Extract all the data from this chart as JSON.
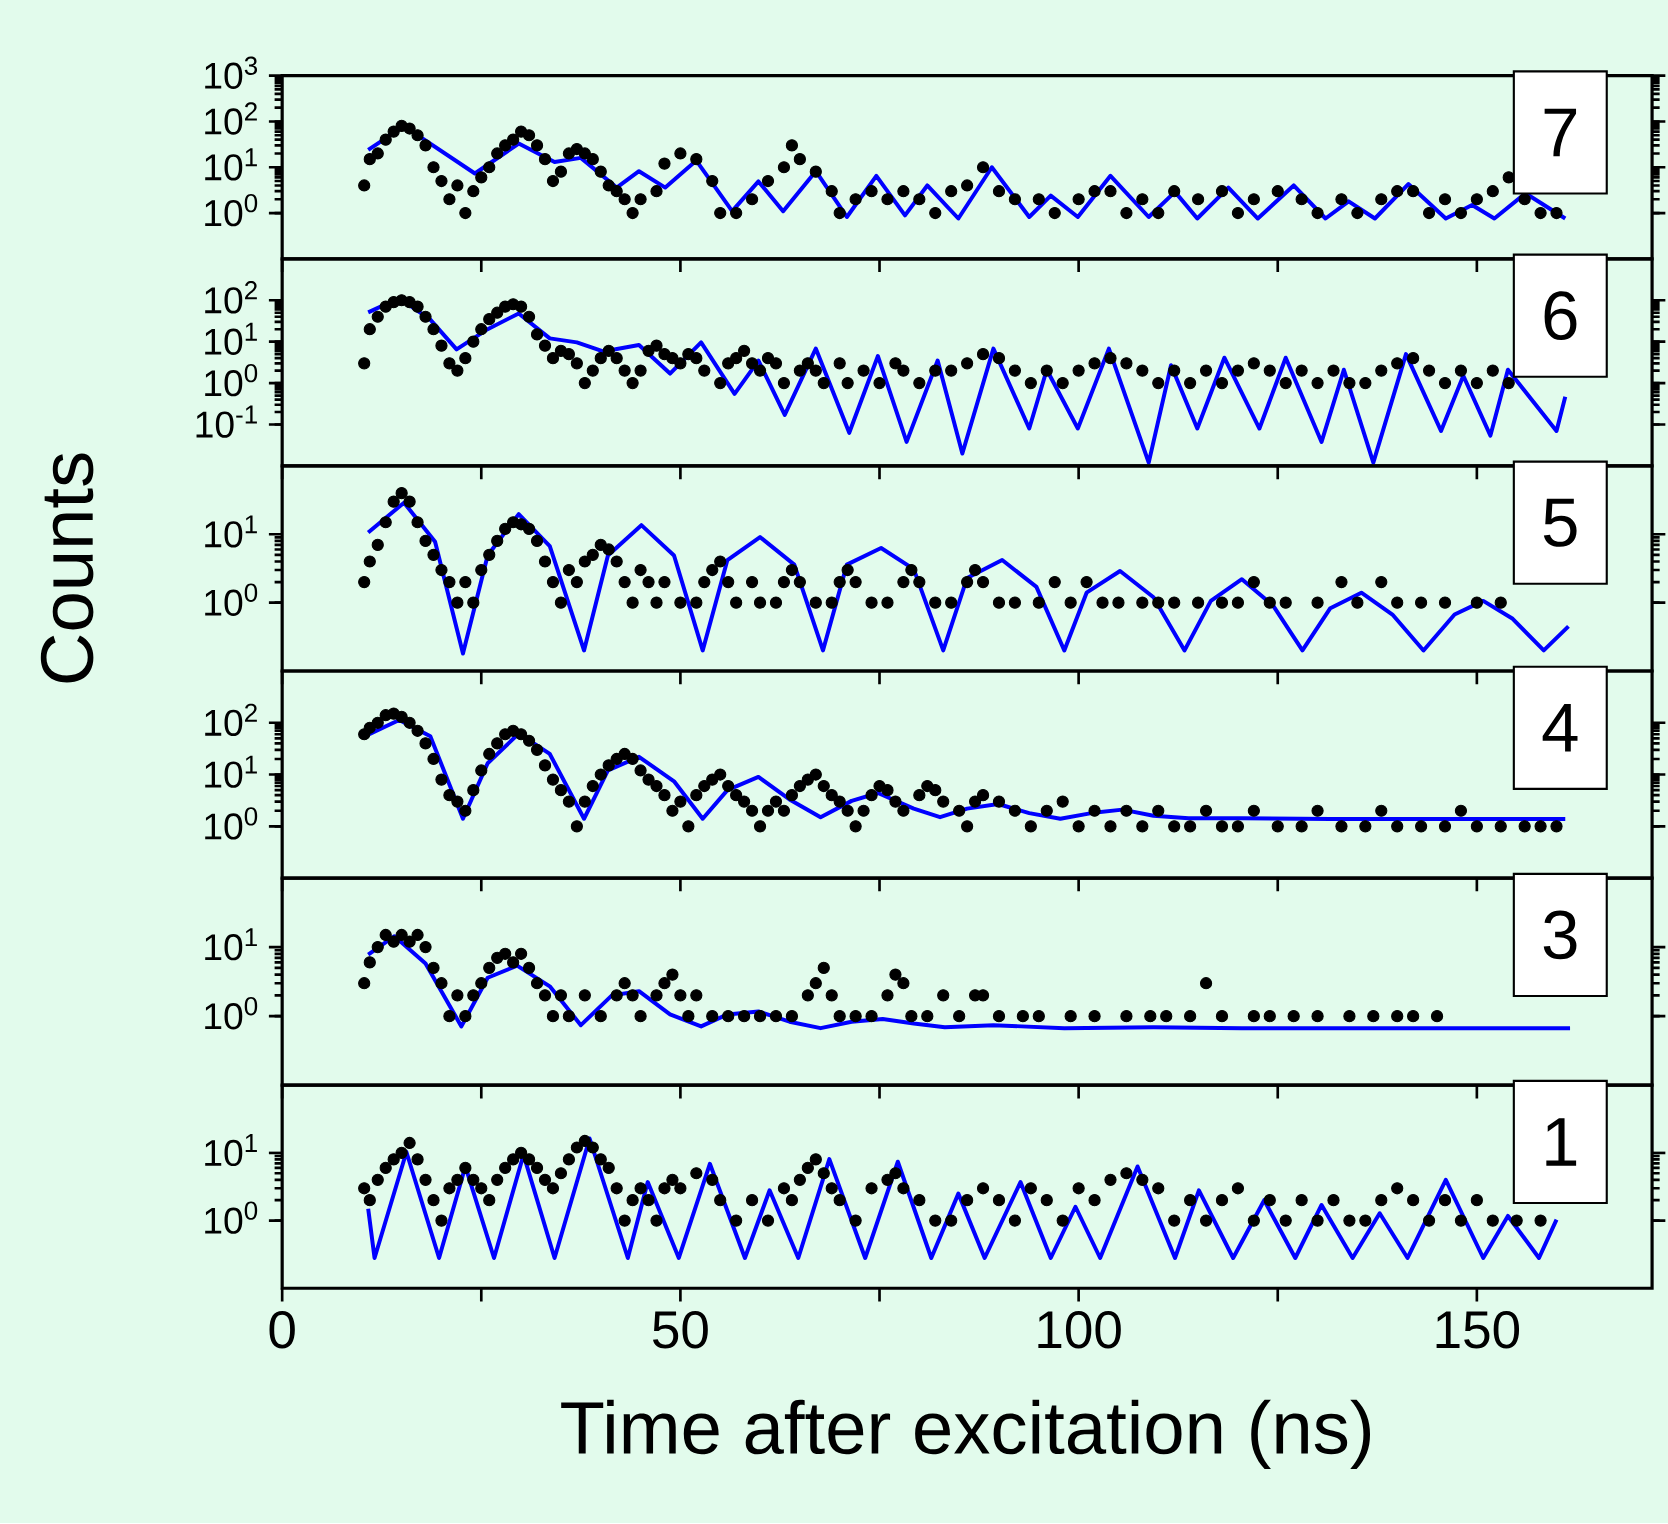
{
  "chart_data": [
    {
      "type": "scatter",
      "title": "7",
      "xlim": [
        0,
        172
      ],
      "ylim": [
        0.1,
        1000
      ],
      "log": "y",
      "tick_labels": "y",
      "xticks": [
        0,
        {
          "value": 25,
          "label": null
        },
        50,
        {
          "value": 75,
          "label": null
        },
        100,
        {
          "value": 125,
          "label": null
        },
        150
      ],
      "yticks": [
        {
          "value": 1,
          "label": "10$^{0}$"
        },
        {
          "value": 10,
          "label": "10$^{1}$"
        },
        {
          "value": 100,
          "label": "10$^{2}$"
        },
        {
          "value": 1000,
          "label": "10$^{3}$"
        }
      ],
      "series": [
        {
          "marker": "circle",
          "color": "#000000",
          "x": [
            10.3,
            11,
            12,
            13,
            14,
            15,
            16,
            17,
            18,
            19,
            20,
            21,
            22,
            23,
            24,
            25,
            26,
            27,
            28,
            29,
            30,
            31,
            32,
            33,
            34,
            35,
            36,
            37,
            38,
            39,
            40,
            41,
            42,
            43,
            44,
            45,
            47,
            48,
            50,
            52,
            54,
            55,
            57,
            59,
            61,
            63,
            64,
            65,
            67,
            69,
            70,
            72,
            74,
            76,
            78,
            80,
            82,
            84,
            86,
            88,
            90,
            92,
            95,
            97,
            100,
            102,
            104,
            106,
            108,
            110,
            112,
            115,
            118,
            120,
            122,
            125,
            128,
            130,
            133,
            135,
            138,
            140,
            142,
            144,
            146,
            148,
            150,
            152,
            154,
            156,
            158,
            160
          ],
          "values": [
            4,
            15,
            20,
            40,
            60,
            80,
            70,
            50,
            30,
            10,
            5,
            2,
            4,
            1,
            3,
            6,
            10,
            20,
            30,
            40,
            60,
            50,
            30,
            15,
            5,
            8,
            20,
            25,
            20,
            15,
            8,
            4,
            3,
            2,
            1,
            2,
            3,
            12,
            20,
            15,
            5,
            1,
            1,
            2,
            5,
            10,
            30,
            15,
            8,
            3,
            1,
            2,
            3,
            2,
            3,
            2,
            1,
            3,
            4,
            10,
            3,
            2,
            2,
            1,
            2,
            3,
            3,
            1,
            2,
            1,
            3,
            2,
            3,
            1,
            2,
            3,
            2,
            1,
            2,
            1,
            2,
            3,
            3,
            1,
            2,
            1,
            2,
            3,
            6,
            2,
            1,
            1
          ]
        },
        {
          "type": "line",
          "marker": "none",
          "color": "#0000ff",
          "x": [
            10.8,
            15.3,
            24.2,
            29.7,
            34.2,
            37.5,
            42,
            44.8,
            48.1,
            52,
            56.5,
            59.8,
            62.9,
            67,
            70.9,
            74.6,
            78.2,
            81,
            84.9,
            89.1,
            93.8,
            96.5,
            99.9,
            104,
            108.8,
            112.1,
            114.9,
            118.8,
            122.5,
            127,
            131,
            133.9,
            137.2,
            141.4,
            146.1,
            149.4,
            152.2,
            156.1,
            161.1
          ],
          "values": [
            24,
            79,
            7.3,
            33,
            13,
            16,
            3.6,
            8.2,
            3.6,
            14,
            1.1,
            4.9,
            1.1,
            8.2,
            0.82,
            6.5,
            0.89,
            4,
            0.76,
            10,
            0.82,
            2.4,
            0.82,
            6.5,
            0.82,
            2.9,
            0.76,
            3.6,
            0.76,
            4,
            0.76,
            1.8,
            0.76,
            4.3,
            0.76,
            1.5,
            0.76,
            2.7,
            0.76
          ]
        }
      ]
    },
    {
      "type": "scatter",
      "title": "6",
      "xlim": [
        0,
        172
      ],
      "ylim": [
        0.01,
        1000
      ],
      "log": "y",
      "tick_labels": "y",
      "xticks": [
        0,
        {
          "value": 25,
          "label": null
        },
        50,
        {
          "value": 75,
          "label": null
        },
        100,
        {
          "value": 125,
          "label": null
        },
        150
      ],
      "yticks": [
        {
          "value": 0.1,
          "label": "10$^{-1}$"
        },
        {
          "value": 1,
          "label": "10$^{0}$"
        },
        {
          "value": 10,
          "label": "10$^{1}$"
        },
        {
          "value": 100,
          "label": "10$^{2}$"
        }
      ],
      "series": [
        {
          "marker": "circle",
          "color": "#000000",
          "x": [
            10.3,
            11,
            12,
            13,
            14,
            15,
            16,
            17,
            18,
            19,
            20,
            21,
            22,
            23,
            24,
            25,
            26,
            27,
            28,
            29,
            30,
            31,
            32,
            33,
            34,
            35,
            36,
            37,
            38,
            39,
            40,
            41,
            42,
            43,
            44,
            45,
            46,
            47,
            48,
            49,
            50,
            51,
            52,
            53,
            55,
            56,
            57,
            58,
            59,
            60,
            61,
            62,
            63,
            65,
            66,
            67,
            68,
            70,
            71,
            73,
            75,
            77,
            78,
            80,
            82,
            84,
            86,
            88,
            90,
            92,
            94,
            96,
            98,
            100,
            102,
            104,
            106,
            108,
            110,
            112,
            114,
            116,
            118,
            120,
            122,
            124,
            126,
            128,
            130,
            132,
            134,
            136,
            138,
            140,
            142,
            144,
            146,
            148,
            150,
            152,
            154
          ],
          "values": [
            3,
            20,
            40,
            70,
            90,
            100,
            90,
            70,
            40,
            20,
            8,
            3,
            2,
            4,
            10,
            20,
            35,
            50,
            70,
            80,
            70,
            40,
            15,
            8,
            4,
            6,
            5,
            3,
            1,
            2,
            4,
            6,
            4,
            2,
            1,
            2,
            6,
            8,
            5,
            4,
            3,
            5,
            4,
            2,
            1,
            3,
            4,
            6,
            3,
            2,
            4,
            3,
            1,
            2,
            3,
            2,
            1,
            3,
            1,
            2,
            1,
            3,
            2,
            1,
            2,
            2,
            3,
            5,
            4,
            2,
            1,
            2,
            1,
            2,
            3,
            4,
            3,
            2,
            1,
            2,
            1,
            2,
            1,
            2,
            3,
            2,
            1,
            2,
            1,
            2,
            1,
            1,
            2,
            3,
            4,
            2,
            1,
            2,
            1,
            2,
            1
          ]
        },
        {
          "type": "line",
          "marker": "none",
          "color": "#0000ff",
          "x": [
            10.8,
            14.7,
            18.6,
            21.9,
            25.8,
            29.7,
            33.6,
            37,
            40.3,
            44.8,
            48.7,
            52.6,
            56.8,
            59.8,
            63.1,
            67,
            71.2,
            74.8,
            78.4,
            82.3,
            85.4,
            89.3,
            93.8,
            96,
            99.9,
            103.8,
            108.8,
            111.6,
            114.9,
            118.3,
            122.7,
            126,
            130.5,
            133.3,
            137,
            141.1,
            145.5,
            148.3,
            151.7,
            153.9,
            160,
            161.1
          ],
          "values": [
            51,
            113,
            34,
            6.5,
            20,
            48,
            12,
            9.6,
            5.8,
            8.3,
            1.7,
            9.6,
            0.55,
            3.5,
            0.17,
            6.8,
            0.063,
            4.5,
            0.038,
            3.5,
            0.02,
            6.8,
            0.08,
            2.1,
            0.08,
            6.8,
            0.012,
            2.7,
            0.08,
            4.1,
            0.08,
            4.1,
            0.038,
            2.1,
            0.012,
            5,
            0.07,
            1.5,
            0.054,
            2.1,
            0.07,
            0.47
          ]
        }
      ]
    },
    {
      "type": "scatter",
      "title": "5",
      "ylabel": "Counts",
      "xlim": [
        0,
        172
      ],
      "ylim": [
        0.1,
        100
      ],
      "log": "y",
      "tick_labels": "y",
      "xticks": [
        0,
        {
          "value": 25,
          "label": null
        },
        50,
        {
          "value": 75,
          "label": null
        },
        100,
        {
          "value": 125,
          "label": null
        },
        150
      ],
      "yticks": [
        {
          "value": 1,
          "label": "10$^{0}$"
        },
        {
          "value": 10,
          "label": "10$^{1}$"
        }
      ],
      "series": [
        {
          "marker": "circle",
          "color": "#000000",
          "x": [
            10.3,
            11,
            12,
            13,
            14,
            15,
            16,
            17,
            18,
            19,
            20,
            21,
            22,
            23,
            24,
            25,
            26,
            27,
            28,
            29,
            30,
            31,
            32,
            33,
            34,
            35,
            36,
            37,
            38,
            39,
            40,
            41,
            42,
            43,
            44,
            45,
            46,
            47,
            48,
            50,
            52,
            53,
            54,
            55,
            56,
            57,
            59,
            60,
            62,
            63,
            64,
            65,
            67,
            69,
            70,
            71,
            72,
            74,
            76,
            78,
            79,
            80,
            82,
            84,
            86,
            87,
            88,
            90,
            92,
            95,
            97,
            99,
            101,
            103,
            105,
            108,
            110,
            112,
            115,
            118,
            120,
            122,
            124,
            126,
            130,
            133,
            135,
            138,
            140,
            143,
            146,
            150,
            153
          ],
          "values": [
            2,
            4,
            7,
            15,
            30,
            40,
            30,
            15,
            8,
            5,
            3,
            2,
            1,
            2,
            1,
            3,
            5,
            8,
            12,
            15,
            14,
            12,
            8,
            4,
            2,
            1,
            3,
            2,
            4,
            5,
            7,
            6,
            4,
            2,
            1,
            3,
            2,
            1,
            2,
            1,
            1,
            2,
            3,
            4,
            2,
            1,
            2,
            1,
            1,
            2,
            3,
            2,
            1,
            1,
            2,
            3,
            2,
            1,
            1,
            2,
            3,
            2,
            1,
            1,
            2,
            3,
            2,
            1,
            1,
            1,
            2,
            1,
            2,
            1,
            1,
            1,
            1,
            1,
            1,
            1,
            1,
            2,
            1,
            1,
            1,
            2,
            1,
            2,
            1,
            1,
            1,
            1,
            1
          ]
        },
        {
          "type": "line",
          "marker": "none",
          "color": "#0000ff",
          "x": [
            10.8,
            15.3,
            19.2,
            22.7,
            25.8,
            29.7,
            33.6,
            37.9,
            40.9,
            45.1,
            49.2,
            52.8,
            55.9,
            60,
            64.3,
            67.9,
            70.9,
            75.2,
            79.3,
            83,
            86,
            90.4,
            94.7,
            98.2,
            101,
            105.2,
            109.4,
            113.3,
            116.6,
            120.5,
            124.4,
            128.1,
            131.6,
            135.5,
            139.4,
            143.3,
            147.2,
            150.8,
            154.5,
            158.4,
            161.5
          ],
          "values": [
            10.6,
            29,
            7.8,
            0.18,
            4.9,
            19.7,
            6.7,
            0.2,
            4.9,
            13.6,
            4.9,
            0.2,
            4.2,
            9.1,
            3.6,
            0.2,
            3.6,
            6.3,
            3.1,
            0.2,
            2.3,
            4.2,
            1.7,
            0.2,
            1.4,
            2.9,
            1.2,
            0.2,
            1.06,
            2.2,
            0.91,
            0.2,
            0.83,
            1.4,
            0.67,
            0.2,
            0.67,
            1.06,
            0.58,
            0.2,
            0.45
          ]
        }
      ]
    },
    {
      "type": "scatter",
      "title": "4",
      "xlim": [
        0,
        172
      ],
      "ylim": [
        0.1,
        1000
      ],
      "log": "y",
      "tick_labels": "y",
      "xticks": [
        0,
        {
          "value": 25,
          "label": null
        },
        50,
        {
          "value": 75,
          "label": null
        },
        100,
        {
          "value": 125,
          "label": null
        },
        150
      ],
      "yticks": [
        {
          "value": 1,
          "label": "10$^{0}$"
        },
        {
          "value": 10,
          "label": "10$^{1}$"
        },
        {
          "value": 100,
          "label": "10$^{2}$"
        }
      ],
      "series": [
        {
          "marker": "circle",
          "color": "#000000",
          "x": [
            10.3,
            11,
            12,
            13,
            14,
            15,
            16,
            17,
            18,
            19,
            20,
            21,
            22,
            23,
            24,
            25,
            26,
            27,
            28,
            29,
            30,
            31,
            32,
            33,
            34,
            35,
            36,
            37,
            38,
            39,
            40,
            41,
            42,
            43,
            44,
            45,
            46,
            47,
            48,
            49,
            50,
            51,
            52,
            53,
            54,
            55,
            56,
            57,
            58,
            59,
            60,
            61,
            62,
            63,
            64,
            65,
            66,
            67,
            68,
            69,
            70,
            71,
            72,
            73,
            74,
            75,
            76,
            77,
            78,
            80,
            81,
            82,
            83,
            85,
            86,
            87,
            88,
            90,
            92,
            94,
            96,
            98,
            100,
            102,
            104,
            106,
            108,
            110,
            112,
            114,
            116,
            118,
            120,
            122,
            125,
            128,
            130,
            133,
            136,
            138,
            140,
            143,
            146,
            148,
            150,
            153,
            156,
            158,
            160
          ],
          "values": [
            60,
            80,
            100,
            140,
            150,
            130,
            100,
            70,
            40,
            20,
            8,
            4,
            3,
            2,
            5,
            12,
            25,
            40,
            60,
            70,
            60,
            45,
            30,
            15,
            8,
            5,
            3,
            1,
            3,
            6,
            10,
            15,
            20,
            25,
            20,
            12,
            8,
            6,
            4,
            2,
            3,
            1,
            4,
            6,
            8,
            10,
            6,
            4,
            3,
            2,
            1,
            2,
            3,
            2,
            4,
            6,
            8,
            10,
            6,
            4,
            3,
            2,
            1,
            2,
            4,
            6,
            5,
            3,
            2,
            4,
            6,
            5,
            3,
            2,
            1,
            3,
            4,
            3,
            2,
            1,
            2,
            3,
            1,
            2,
            1,
            2,
            1,
            2,
            1,
            1,
            2,
            1,
            1,
            2,
            1,
            1,
            2,
            1,
            1,
            2,
            1,
            1,
            1,
            2,
            1,
            1,
            1,
            1,
            1
          ]
        },
        {
          "type": "line",
          "marker": "none",
          "color": "#0000ff",
          "x": [
            10.8,
            14.7,
            18.6,
            22.7,
            25.8,
            29.7,
            33.6,
            37.9,
            40.9,
            44.8,
            49.2,
            52.8,
            55.9,
            59.8,
            63.7,
            67.6,
            71.5,
            74.8,
            79.3,
            82.6,
            86,
            89.9,
            93.8,
            97.7,
            101.6,
            105.5,
            109.4,
            113.8,
            120.5,
            131.6,
            142.8,
            153.9,
            161.1
          ],
          "values": [
            59,
            113,
            55,
            1.4,
            16.5,
            62,
            25,
            1.4,
            12,
            22,
            7.4,
            1.4,
            5,
            9,
            3.3,
            1.5,
            3.1,
            4.4,
            2.2,
            1.5,
            2.2,
            2.7,
            1.8,
            1.4,
            1.8,
            2.1,
            1.6,
            1.43,
            1.43,
            1.38,
            1.38,
            1.38,
            1.38
          ]
        }
      ]
    },
    {
      "type": "scatter",
      "title": "3",
      "xlim": [
        0,
        172
      ],
      "ylim": [
        0.1,
        100
      ],
      "log": "y",
      "tick_labels": "y",
      "xticks": [
        0,
        {
          "value": 25,
          "label": null
        },
        50,
        {
          "value": 75,
          "label": null
        },
        100,
        {
          "value": 125,
          "label": null
        },
        150
      ],
      "yticks": [
        {
          "value": 1,
          "label": "10$^{0}$"
        },
        {
          "value": 10,
          "label": "10$^{1}$"
        }
      ],
      "series": [
        {
          "marker": "circle",
          "color": "#000000",
          "x": [
            10.3,
            11,
            12,
            13,
            14,
            15,
            16,
            17,
            18,
            19,
            20,
            21,
            22,
            23,
            24,
            25,
            26,
            27,
            28,
            29,
            30,
            31,
            32,
            33,
            34,
            35,
            36,
            38,
            40,
            42,
            43,
            44,
            45,
            47,
            48,
            49,
            50,
            51,
            52,
            54,
            56,
            58,
            60,
            62,
            64,
            66,
            67,
            68,
            69,
            70,
            72,
            74,
            76,
            77,
            78,
            79,
            81,
            83,
            85,
            87,
            88,
            90,
            93,
            95,
            99,
            102,
            106,
            109,
            111,
            114,
            116,
            118,
            122,
            124,
            127,
            130,
            134,
            137,
            140,
            142,
            145
          ],
          "values": [
            3,
            6,
            10,
            15,
            12,
            15,
            12,
            15,
            10,
            5,
            3,
            1,
            2,
            1,
            2,
            3,
            5,
            7,
            8,
            6,
            8,
            5,
            3,
            2,
            1,
            2,
            1,
            2,
            1,
            2,
            3,
            2,
            1,
            2,
            3,
            4,
            2,
            1,
            2,
            1,
            1,
            1,
            1,
            1,
            1,
            2,
            3,
            5,
            2,
            1,
            1,
            1,
            2,
            4,
            3,
            1,
            1,
            2,
            1,
            2,
            2,
            1,
            1,
            1,
            1,
            1,
            1,
            1,
            1,
            1,
            3,
            1,
            1,
            1,
            1,
            1,
            1,
            1,
            1,
            1,
            1
          ]
        },
        {
          "type": "line",
          "marker": "none",
          "color": "#0000ff",
          "x": [
            10.8,
            14.1,
            18,
            22.5,
            25.8,
            29.5,
            33.6,
            37.5,
            41.4,
            44.8,
            48.7,
            52.6,
            55.9,
            59.8,
            63.7,
            67.6,
            71.5,
            75.4,
            79.3,
            83.2,
            89.3,
            98.2,
            109.4,
            120.5,
            131.6,
            142.8,
            153.9,
            161.7
          ],
          "values": [
            7.8,
            14.4,
            5.8,
            0.71,
            3.6,
            5.4,
            2.7,
            0.74,
            2,
            2.3,
            1.06,
            0.71,
            1.06,
            1.17,
            0.83,
            0.67,
            0.83,
            0.91,
            0.78,
            0.69,
            0.74,
            0.67,
            0.69,
            0.67,
            0.67,
            0.67,
            0.67,
            0.67
          ]
        }
      ]
    },
    {
      "type": "scatter",
      "title": "1",
      "xlabel": "Time after excitation (ns)",
      "xlim": [
        0,
        172
      ],
      "ylim": [
        0.1,
        100
      ],
      "log": "y",
      "xticks": [
        0,
        {
          "value": 25,
          "label": null
        },
        50,
        {
          "value": 75,
          "label": null
        },
        100,
        {
          "value": 125,
          "label": null
        },
        150
      ],
      "yticks": [
        {
          "value": 1,
          "label": "10$^{0}$"
        },
        {
          "value": 10,
          "label": "10$^{1}$"
        }
      ],
      "series": [
        {
          "marker": "circle",
          "color": "#000000",
          "x": [
            10.3,
            11,
            12,
            13,
            14,
            15,
            16,
            17,
            18,
            19,
            20,
            21,
            22,
            23,
            24,
            25,
            26,
            27,
            28,
            29,
            30,
            31,
            32,
            33,
            34,
            35,
            36,
            37,
            38,
            39,
            40,
            41,
            42,
            43,
            44,
            45,
            46,
            47,
            48,
            49,
            50,
            52,
            54,
            55,
            57,
            59,
            61,
            63,
            64,
            65,
            66,
            67,
            68,
            69,
            70,
            72,
            74,
            76,
            77,
            78,
            80,
            82,
            84,
            86,
            88,
            90,
            92,
            94,
            96,
            98,
            100,
            102,
            104,
            106,
            108,
            110,
            112,
            114,
            116,
            118,
            120,
            122,
            124,
            126,
            128,
            130,
            132,
            134,
            136,
            138,
            140,
            142,
            144,
            146,
            148,
            150,
            152,
            155,
            158
          ],
          "values": [
            3,
            2,
            4,
            6,
            8,
            10,
            14,
            8,
            4,
            2,
            1,
            3,
            4,
            6,
            4,
            3,
            2,
            4,
            6,
            8,
            10,
            8,
            6,
            4,
            3,
            5,
            8,
            12,
            15,
            12,
            8,
            6,
            3,
            1,
            2,
            3,
            2,
            1,
            3,
            4,
            3,
            5,
            4,
            2,
            1,
            2,
            1,
            3,
            2,
            4,
            6,
            8,
            5,
            3,
            2,
            1,
            3,
            4,
            5,
            3,
            2,
            1,
            1,
            2,
            3,
            2,
            1,
            3,
            2,
            1,
            3,
            2,
            4,
            5,
            4,
            3,
            1,
            2,
            1,
            2,
            3,
            1,
            2,
            1,
            2,
            1,
            2,
            1,
            1,
            2,
            3,
            2,
            1,
            2,
            1,
            2,
            1,
            1,
            1
          ]
        },
        {
          "type": "line",
          "marker": "none",
          "color": "#0000ff",
          "x": [
            10.8,
            11.6,
            15.6,
            19.7,
            23,
            26.6,
            30.3,
            34.2,
            38.6,
            43.4,
            45.9,
            49.8,
            53.7,
            58.1,
            61.2,
            64.8,
            68.7,
            73.2,
            77.3,
            81.5,
            84.9,
            88.2,
            92.7,
            96.5,
            99.6,
            102.7,
            107.4,
            112.1,
            115.1,
            119.4,
            123.3,
            127.2,
            130.5,
            134.4,
            137.8,
            141.3,
            146.1,
            150.8,
            153.9,
            157.8,
            160
          ],
          "values": [
            1.5,
            0.28,
            10.3,
            0.28,
            6.3,
            0.28,
            9.4,
            0.28,
            16.3,
            0.28,
            3.7,
            0.28,
            6.9,
            0.28,
            2.8,
            0.28,
            8.1,
            0.28,
            7.4,
            0.28,
            2.5,
            0.28,
            3.7,
            0.28,
            1.6,
            0.28,
            6.3,
            0.28,
            2.8,
            0.28,
            2,
            0.28,
            1.7,
            0.28,
            1.28,
            0.28,
            4,
            0.28,
            1.17,
            0.28,
            1.03
          ]
        }
      ]
    }
  ]
}
